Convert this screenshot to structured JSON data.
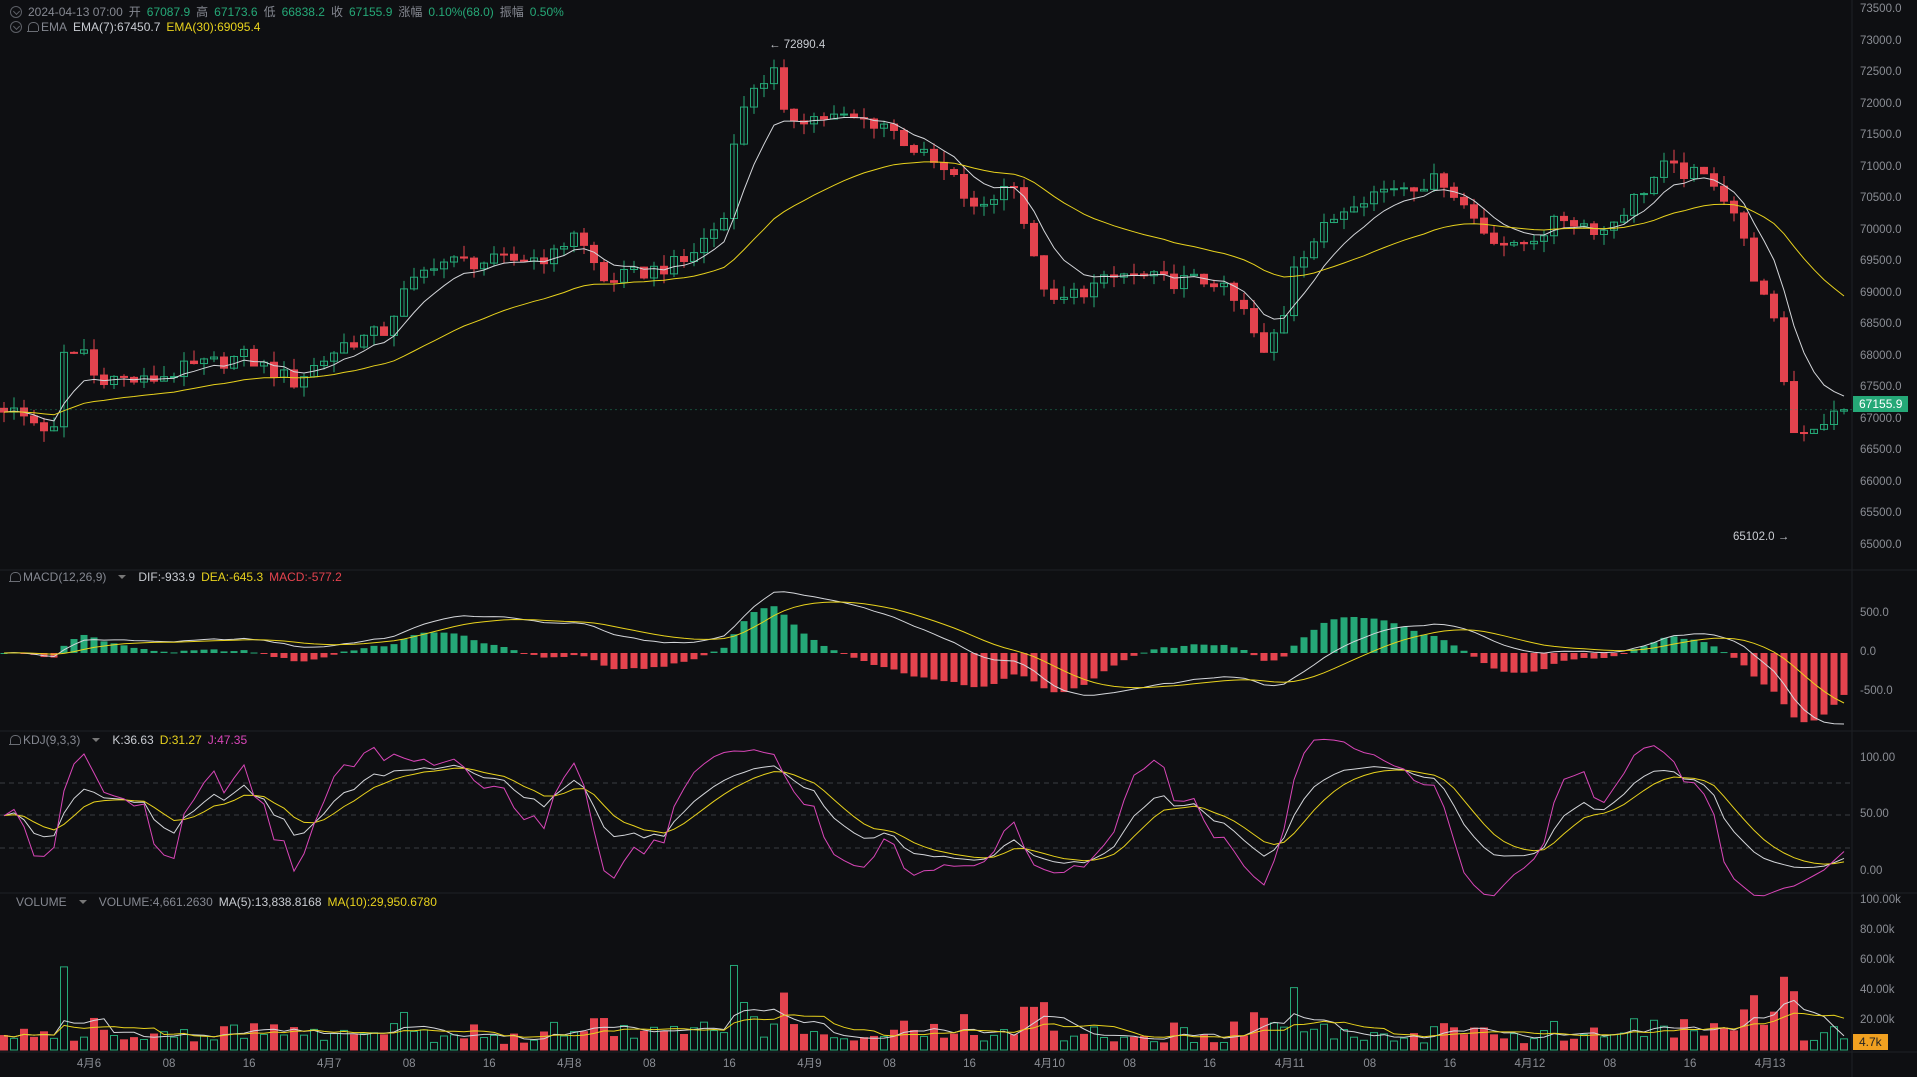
{
  "header": {
    "datetime": "2024-04-13 07:00",
    "open_label": "开",
    "open": "67087.9",
    "high_label": "高",
    "high": "67173.6",
    "low_label": "低",
    "low": "66838.2",
    "close_label": "收",
    "close": "67155.9",
    "change_label": "涨幅",
    "change": "0.10%(68.0)",
    "amplitude_label": "振幅",
    "amplitude": "0.50%"
  },
  "ema": {
    "name": "EMA",
    "ema7": "EMA(7):67450.7",
    "ema30": "EMA(30):69095.4"
  },
  "macd": {
    "name": "MACD(12,26,9)",
    "dif": "DIF:-933.9",
    "dea": "DEA:-645.3",
    "macd": "MACD:-577.2"
  },
  "kdj": {
    "name": "KDJ(9,3,3)",
    "k": "K:36.63",
    "d": "D:31.27",
    "j": "J:47.35"
  },
  "volume": {
    "name": "VOLUME",
    "vol": "VOLUME:4,661.2630",
    "ma5": "MA(5):13,838.8168",
    "ma10": "MA(10):29,950.6780"
  },
  "price_axis": [
    "73500.0",
    "73000.0",
    "72500.0",
    "72000.0",
    "71500.0",
    "71000.0",
    "70500.0",
    "70000.0",
    "69500.0",
    "69000.0",
    "68500.0",
    "68000.0",
    "67500.0",
    "67000.0",
    "66500.0",
    "66000.0",
    "65500.0",
    "65000.0"
  ],
  "macd_axis": [
    "500.0",
    "0.0",
    "-500.0"
  ],
  "kdj_axis": [
    "100.00",
    "50.00",
    "0.00"
  ],
  "volume_axis": [
    "100.00k",
    "80.00k",
    "60.00k",
    "40.00k",
    "20.00k"
  ],
  "date_axis": [
    "4月6",
    "08",
    "16",
    "4月7",
    "08",
    "16",
    "4月8",
    "08",
    "16",
    "4月9",
    "08",
    "16",
    "4月10",
    "08",
    "16",
    "4月11",
    "08",
    "16",
    "4月12",
    "08",
    "16",
    "4月13"
  ],
  "current_price_tag": "67155.9",
  "current_volume_tag": "4.7k",
  "high_marker": "72890.4",
  "low_marker": "65102.0",
  "colors": {
    "up": "#25a877",
    "down": "#e4434e",
    "ema7": "#d4d6da",
    "ema30": "#e8d21d",
    "j": "#d946b8",
    "volume_tag": "#f0a020"
  },
  "chart_data": {
    "type": "candlestick",
    "interval": "1h",
    "candle_count": 185,
    "close_keypoints": [
      [
        0,
        67200
      ],
      [
        5,
        66800
      ],
      [
        6,
        68000
      ],
      [
        8,
        68100
      ],
      [
        9,
        67700
      ],
      [
        14,
        67600
      ],
      [
        18,
        67800
      ],
      [
        24,
        68000
      ],
      [
        29,
        67600
      ],
      [
        34,
        68200
      ],
      [
        38,
        68400
      ],
      [
        40,
        69000
      ],
      [
        43,
        69500
      ],
      [
        49,
        69500
      ],
      [
        55,
        69600
      ],
      [
        57,
        70000
      ],
      [
        60,
        69200
      ],
      [
        63,
        69300
      ],
      [
        68,
        69500
      ],
      [
        72,
        70200
      ],
      [
        73,
        71500
      ],
      [
        75,
        72300
      ],
      [
        77,
        72500
      ],
      [
        78,
        71800
      ],
      [
        83,
        71800
      ],
      [
        88,
        71700
      ],
      [
        91,
        71300
      ],
      [
        95,
        70800
      ],
      [
        97,
        70300
      ],
      [
        101,
        70800
      ],
      [
        103,
        69500
      ],
      [
        105,
        68800
      ],
      [
        107,
        69000
      ],
      [
        112,
        69300
      ],
      [
        116,
        69200
      ],
      [
        121,
        69200
      ],
      [
        124,
        68700
      ],
      [
        126,
        68000
      ],
      [
        128,
        68700
      ],
      [
        129,
        69500
      ],
      [
        133,
        70200
      ],
      [
        135,
        70500
      ],
      [
        139,
        70700
      ],
      [
        144,
        70800
      ],
      [
        146,
        70400
      ],
      [
        148,
        70000
      ],
      [
        151,
        69700
      ],
      [
        156,
        70200
      ],
      [
        160,
        70000
      ],
      [
        163,
        70500
      ],
      [
        166,
        71000
      ],
      [
        171,
        70800
      ],
      [
        173,
        70300
      ],
      [
        175,
        69300
      ],
      [
        177,
        68500
      ],
      [
        179,
        66800
      ],
      [
        181,
        66900
      ],
      [
        184,
        67155.9
      ]
    ],
    "price_range": [
      64800,
      73600
    ]
  }
}
